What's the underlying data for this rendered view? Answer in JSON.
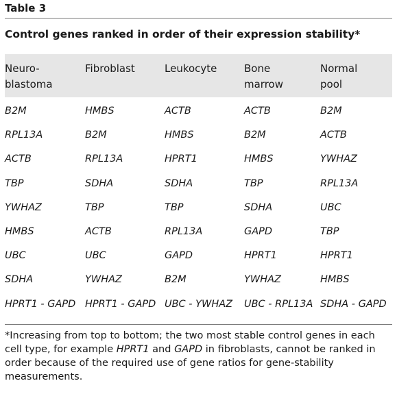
{
  "table_label": "Table 3",
  "caption": "Control genes ranked in order of their expression stability*",
  "columns": [
    "Neuro-\nblastoma",
    "Fibroblast",
    "Leukocyte",
    "Bone\nmarrow",
    "Normal\npool"
  ],
  "rows": [
    [
      "B2M",
      "HMBS",
      "ACTB",
      "ACTB",
      "B2M"
    ],
    [
      "RPL13A",
      "B2M",
      "HMBS",
      "B2M",
      "ACTB"
    ],
    [
      "ACTB",
      "RPL13A",
      "HPRT1",
      "HMBS",
      "YWHAZ"
    ],
    [
      "TBP",
      "SDHA",
      "SDHA",
      "TBP",
      "RPL13A"
    ],
    [
      "YWHAZ",
      "TBP",
      "TBP",
      "SDHA",
      "UBC"
    ],
    [
      "HMBS",
      "ACTB",
      "RPL13A",
      "GAPD",
      "TBP"
    ],
    [
      "UBC",
      "UBC",
      "GAPD",
      "HPRT1",
      "HPRT1"
    ],
    [
      "SDHA",
      "YWHAZ",
      "B2M",
      "YWHAZ",
      "HMBS"
    ],
    [
      "HPRT1 - GAPD",
      "HPRT1 - GAPD",
      "UBC - YWHAZ",
      "UBC - RPL13A",
      "SDHA - GAPD"
    ]
  ],
  "footnote": {
    "part1": "*Increasing from top to bottom; the two most stable control genes in each cell type, for example ",
    "gene1": "HPRT1",
    "part2": " and ",
    "gene2": "GAPD",
    "part3": " in fibroblasts, cannot be ranked in order because of the required use of gene ratios for gene-stability measurements."
  }
}
